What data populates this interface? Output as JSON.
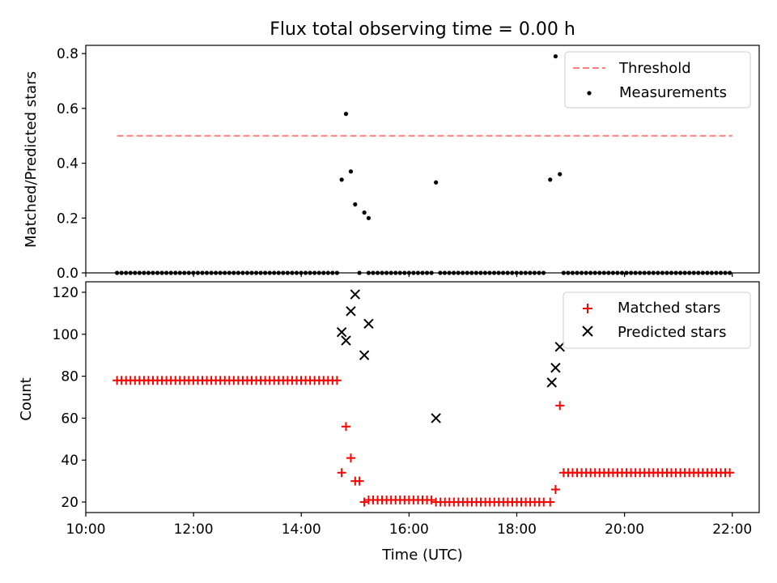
{
  "chart_data": [
    {
      "type": "scatter",
      "title": "Flux total observing time = 0.00 h",
      "ylabel": "Matched/Predicted stars",
      "xlabel": "",
      "xlim": [
        10.0,
        22.5
      ],
      "ylim": [
        0.0,
        0.83
      ],
      "yticks": [
        0.0,
        0.2,
        0.4,
        0.6,
        0.8
      ],
      "ytick_labels": [
        "0.0",
        "0.2",
        "0.4",
        "0.6",
        "0.8"
      ],
      "legend_position": "top-right",
      "threshold": {
        "name": "Threshold",
        "color": "#ff7f7f",
        "style": "dashed",
        "value": 0.5,
        "x_range": [
          10.58,
          22.0
        ]
      },
      "series": [
        {
          "name": "Measurements",
          "color": "#000000",
          "marker": "dot",
          "zero_ranges": [
            [
              10.58,
              14.67
            ],
            [
              15.25,
              16.42
            ],
            [
              16.58,
              18.55
            ],
            [
              18.87,
              22.0
            ]
          ],
          "step_minutes": 5,
          "points": [
            [
              14.75,
              0.34
            ],
            [
              14.83,
              0.58
            ],
            [
              14.92,
              0.37
            ],
            [
              15.0,
              0.25
            ],
            [
              15.08,
              0.0
            ],
            [
              15.17,
              0.22
            ],
            [
              15.25,
              0.2
            ],
            [
              16.5,
              0.33
            ],
            [
              18.62,
              0.34
            ],
            [
              18.72,
              0.79
            ],
            [
              18.8,
              0.36
            ]
          ]
        }
      ]
    },
    {
      "type": "scatter",
      "title": "",
      "xlabel": "Time (UTC)",
      "ylabel": "Count",
      "xlim": [
        10.0,
        22.5
      ],
      "ylim": [
        15.0,
        125.0
      ],
      "xticks": [
        10,
        12,
        14,
        16,
        18,
        20,
        22
      ],
      "xtick_labels": [
        "10:00",
        "12:00",
        "14:00",
        "16:00",
        "18:00",
        "20:00",
        "22:00"
      ],
      "yticks": [
        20,
        40,
        60,
        80,
        100,
        120
      ],
      "ytick_labels": [
        "20",
        "40",
        "60",
        "80",
        "100",
        "120"
      ],
      "legend_position": "top-right",
      "series": [
        {
          "name": "Matched stars",
          "color": "#ff0000",
          "marker": "plus",
          "runs": [
            {
              "start": 10.58,
              "end": 14.67,
              "value": 78
            },
            {
              "start": 15.25,
              "end": 16.42,
              "value": 21
            },
            {
              "start": 16.5,
              "end": 18.55,
              "value": 20
            },
            {
              "start": 18.87,
              "end": 22.0,
              "value": 34
            }
          ],
          "step_minutes": 5,
          "points": [
            [
              14.75,
              34
            ],
            [
              14.83,
              56
            ],
            [
              14.92,
              41
            ],
            [
              15.0,
              30
            ],
            [
              15.08,
              30
            ],
            [
              15.17,
              20
            ],
            [
              18.62,
              20
            ],
            [
              18.72,
              26
            ],
            [
              18.8,
              66
            ]
          ]
        },
        {
          "name": "Predicted stars",
          "color": "#000000",
          "marker": "x",
          "points": [
            [
              14.75,
              101
            ],
            [
              14.83,
              97
            ],
            [
              14.92,
              111
            ],
            [
              15.0,
              119
            ],
            [
              15.17,
              90
            ],
            [
              15.25,
              105
            ],
            [
              16.5,
              60
            ],
            [
              18.65,
              77
            ],
            [
              18.72,
              84
            ],
            [
              18.8,
              94
            ]
          ]
        }
      ]
    }
  ]
}
